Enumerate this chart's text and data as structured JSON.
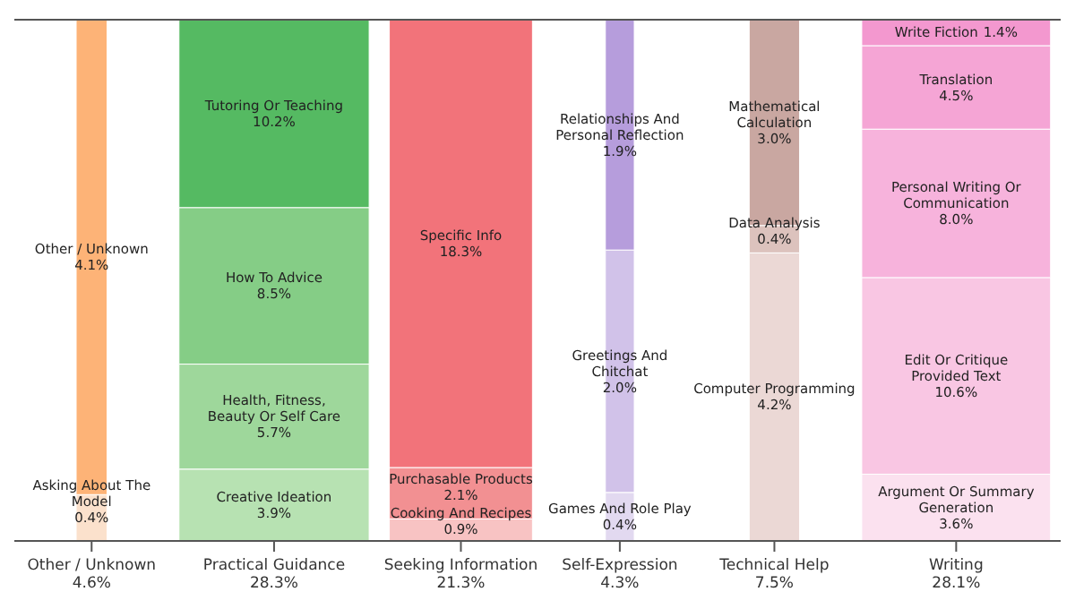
{
  "chart_data": {
    "type": "other",
    "categories": [
      "Other / Unknown",
      "Practical Guidance",
      "Seeking Information",
      "Self-Expression",
      "Technical Help",
      "Writing"
    ],
    "values": [
      4.6,
      28.3,
      21.3,
      4.3,
      7.5,
      28.1
    ],
    "value_labels": [
      "4.6%",
      "28.3%",
      "21.3%",
      "4.3%",
      "7.5%",
      "28.1%"
    ],
    "series": [
      {
        "name": "Asking About The Model",
        "color": "#fbe1cc",
        "values": [
          0.4,
          null,
          null,
          null,
          null,
          null
        ],
        "value_labels": [
          "0.4%",
          null,
          null,
          null,
          null,
          null
        ]
      },
      {
        "name": "Other / Unknown",
        "color": "#fdb377",
        "values": [
          4.1,
          null,
          null,
          null,
          null,
          null
        ],
        "value_labels": [
          "4.1%",
          null,
          null,
          null,
          null,
          null
        ]
      },
      {
        "name": "Creative Ideation",
        "color": "#b7e2b2",
        "values": [
          null,
          3.9,
          null,
          null,
          null,
          null
        ],
        "value_labels": [
          null,
          "3.9%",
          null,
          null,
          null,
          null
        ]
      },
      {
        "name": "Health, Fitness, Beauty Or Self Care",
        "color": "#9ed79b",
        "values": [
          null,
          5.7,
          null,
          null,
          null,
          null
        ],
        "value_labels": [
          null,
          "5.7%",
          null,
          null,
          null,
          null
        ]
      },
      {
        "name": "How To Advice",
        "color": "#85cd86",
        "values": [
          null,
          8.5,
          null,
          null,
          null,
          null
        ],
        "value_labels": [
          null,
          "8.5%",
          null,
          null,
          null,
          null
        ]
      },
      {
        "name": "Tutoring Or Teaching",
        "color": "#55ba62",
        "values": [
          null,
          10.2,
          null,
          null,
          null,
          null
        ],
        "value_labels": [
          null,
          "10.2%",
          null,
          null,
          null,
          null
        ]
      },
      {
        "name": "Cooking And Recipes",
        "color": "#f8c3c3",
        "values": [
          null,
          null,
          0.9,
          null,
          null,
          null
        ],
        "value_labels": [
          null,
          null,
          "0.9%",
          null,
          null,
          null
        ]
      },
      {
        "name": "Purchasable Products",
        "color": "#f29092",
        "values": [
          null,
          null,
          2.1,
          null,
          null,
          null
        ],
        "value_labels": [
          null,
          null,
          "2.1%",
          null,
          null,
          null
        ]
      },
      {
        "name": "Specific Info",
        "color": "#f2737a",
        "values": [
          null,
          null,
          18.3,
          null,
          null,
          null
        ],
        "value_labels": [
          null,
          null,
          "18.3%",
          null,
          null,
          null
        ]
      },
      {
        "name": "Games And Role Play",
        "color": "#e2d9f0",
        "values": [
          null,
          null,
          null,
          0.4,
          null,
          null
        ],
        "value_labels": [
          null,
          null,
          null,
          "0.4%",
          null,
          null
        ]
      },
      {
        "name": "Greetings And Chitchat",
        "color": "#d1c2e9",
        "values": [
          null,
          null,
          null,
          2.0,
          null,
          null
        ],
        "value_labels": [
          null,
          null,
          null,
          "2.0%",
          null,
          null
        ]
      },
      {
        "name": "Relationships And Personal Reflection",
        "color": "#b69ddc",
        "values": [
          null,
          null,
          null,
          1.9,
          null,
          null
        ],
        "value_labels": [
          null,
          null,
          null,
          "1.9%",
          null,
          null
        ]
      },
      {
        "name": "Computer Programming",
        "color": "#ebd8d5",
        "values": [
          null,
          null,
          null,
          null,
          4.2,
          null
        ],
        "value_labels": [
          null,
          null,
          null,
          null,
          "4.2%",
          null
        ]
      },
      {
        "name": "Data Analysis",
        "color": "#dcc2bd",
        "values": [
          null,
          null,
          null,
          null,
          0.4,
          null
        ],
        "value_labels": [
          null,
          null,
          null,
          null,
          "0.4%",
          null
        ]
      },
      {
        "name": "Mathematical Calculation",
        "color": "#c9a7a1",
        "values": [
          null,
          null,
          null,
          null,
          3.0,
          null
        ],
        "value_labels": [
          null,
          null,
          null,
          null,
          "3.0%",
          null
        ]
      },
      {
        "name": "Argument Or Summary Generation",
        "color": "#fbe1ef",
        "values": [
          null,
          null,
          null,
          null,
          null,
          3.6
        ],
        "value_labels": [
          null,
          null,
          null,
          null,
          null,
          "3.6%"
        ]
      },
      {
        "name": "Edit Or Critique Provided Text",
        "color": "#f9c6e3",
        "values": [
          null,
          null,
          null,
          null,
          null,
          10.6
        ],
        "value_labels": [
          null,
          null,
          null,
          null,
          null,
          "10.6%"
        ]
      },
      {
        "name": "Personal Writing Or Communication",
        "color": "#f7b3dc",
        "values": [
          null,
          null,
          null,
          null,
          null,
          8.0
        ],
        "value_labels": [
          null,
          null,
          null,
          null,
          null,
          "8.0%"
        ]
      },
      {
        "name": "Translation",
        "color": "#f5a5d5",
        "values": [
          null,
          null,
          null,
          null,
          null,
          4.5
        ],
        "value_labels": [
          null,
          null,
          null,
          null,
          null,
          "4.5%"
        ]
      },
      {
        "name": "Write Fiction",
        "color": "#f398cf",
        "values": [
          null,
          null,
          null,
          null,
          null,
          1.4
        ],
        "value_labels": [
          null,
          null,
          null,
          null,
          null,
          "1.4%"
        ]
      }
    ]
  }
}
